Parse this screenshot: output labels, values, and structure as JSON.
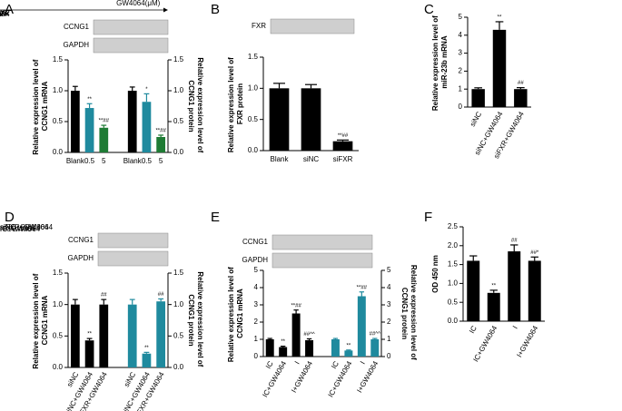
{
  "chart_data": [
    {
      "type": "bar",
      "panel": "A",
      "blot": {
        "header": "GW4064(μM)",
        "lanes": [
          "Blank",
          "0.5",
          "5"
        ],
        "rows": [
          "CCNG1",
          "GAPDH"
        ]
      },
      "categories": [
        "Blank",
        "0.5",
        "5",
        "Blank",
        "0.5",
        "5"
      ],
      "colors": [
        "#000000",
        "#1f8a9e",
        "#1e7b34",
        "#000000",
        "#1f8a9e",
        "#1e7b34"
      ],
      "series": [
        {
          "values": [
            1.0,
            0.72,
            0.4,
            null,
            null,
            null
          ],
          "errors": [
            0.07,
            0.07,
            0.04,
            null,
            null,
            null
          ]
        },
        {
          "axis": "y2",
          "values": [
            null,
            null,
            null,
            1.0,
            0.82,
            0.25
          ],
          "errors": [
            null,
            null,
            null,
            0.06,
            0.13,
            0.03
          ]
        }
      ],
      "annotations": [
        null,
        "**",
        "**##",
        null,
        "*",
        "**##"
      ],
      "ylabel": "Relative expression level of CCNG1 mRNA",
      "y2label": "Relative expression level of CCNG1 protein",
      "ylim": [
        0,
        1.5
      ],
      "yticks": [
        {
          "value": 0,
          "label": "0.0"
        },
        0.5,
        {
          "value": 1,
          "label": "1.0"
        },
        1.5
      ],
      "y2lim": [
        0,
        1.5
      ],
      "y2ticks": [
        {
          "value": 0,
          "label": "0.0"
        },
        0.5,
        {
          "value": 1,
          "label": "1.0"
        },
        1.5
      ]
    },
    {
      "type": "bar",
      "panel": "B",
      "blot": {
        "lanes": [
          "Blank",
          "siNC",
          "siFXR"
        ],
        "rows": [
          "FXR"
        ]
      },
      "categories": [
        "Blank",
        "siNC",
        "siFXR"
      ],
      "colors": [
        "#000000",
        "#000000",
        "#000000"
      ],
      "series": [
        {
          "values": [
            1.0,
            1.0,
            0.15
          ],
          "errors": [
            0.08,
            0.06,
            0.02
          ]
        }
      ],
      "annotations": [
        null,
        null,
        "**##"
      ],
      "ylabel": "Relative expression level of FXR protein",
      "ylim": [
        0,
        1.5
      ],
      "yticks": [
        {
          "value": 0,
          "label": "0.0"
        },
        0.5,
        {
          "value": 1,
          "label": "1.0"
        },
        1.5
      ]
    },
    {
      "type": "bar",
      "panel": "C",
      "categories": [
        "siNC",
        "siNC+GW4064",
        "siFXR+GW4064"
      ],
      "xtick_rotation": 60,
      "colors": [
        "#000000",
        "#000000",
        "#000000"
      ],
      "series": [
        {
          "values": [
            1.0,
            4.3,
            1.0
          ],
          "errors": [
            0.07,
            0.45,
            0.08
          ]
        }
      ],
      "annotations": [
        null,
        "**",
        "##"
      ],
      "ylabel": "Relative expression level of miR-23b mRNA",
      "ylim": [
        0,
        5
      ],
      "yticks": [
        0,
        1,
        2,
        3,
        4,
        5
      ]
    },
    {
      "type": "bar",
      "panel": "D",
      "blot": {
        "lanes": [
          "siNC",
          "siNC+GW4064",
          "siFXR+GW4064"
        ],
        "lane_rotation": 60,
        "rows": [
          "CCNG1",
          "GAPDH"
        ]
      },
      "categories": [
        "siNC",
        "siNC+GW4064",
        "siFXR+GW4064",
        "siNC",
        "siNC+GW4064",
        "siFXR+GW4064"
      ],
      "xtick_rotation": 60,
      "colors": [
        "#000000",
        "#000000",
        "#000000",
        "#1f8a9e",
        "#1f8a9e",
        "#1f8a9e"
      ],
      "series": [
        {
          "values": [
            1.0,
            0.43,
            1.0,
            null,
            null,
            null
          ],
          "errors": [
            0.08,
            0.03,
            0.08,
            null,
            null,
            null
          ]
        },
        {
          "axis": "y2",
          "values": [
            null,
            null,
            null,
            1.0,
            0.22,
            1.05
          ],
          "errors": [
            null,
            null,
            null,
            0.08,
            0.02,
            0.04
          ]
        }
      ],
      "annotations": [
        null,
        "**",
        "##",
        null,
        "**",
        "##"
      ],
      "ylabel": "Relative expression level of CCNG1 mRNA",
      "y2label": "Relative expression level of CCNG1 protein",
      "ylim": [
        0,
        1.5
      ],
      "yticks": [
        {
          "value": 0,
          "label": "0.0"
        },
        0.5,
        {
          "value": 1,
          "label": "1.0"
        },
        1.5
      ],
      "y2lim": [
        0,
        1.5
      ],
      "y2ticks": [
        {
          "value": 0,
          "label": "0.0"
        },
        0.5,
        {
          "value": 1,
          "label": "1.0"
        },
        1.5
      ]
    },
    {
      "type": "bar",
      "panel": "E",
      "blot": {
        "lanes": [
          "IC",
          "IC+GW4064",
          "I",
          "I+GW4064"
        ],
        "lane_rotation": 60,
        "rows": [
          "CCNG1",
          "GAPDH"
        ]
      },
      "categories": [
        "IC",
        "IC+GW4064",
        "I",
        "I+GW4064",
        "IC",
        "IC+GW4064",
        "I",
        "I+GW4064"
      ],
      "xtick_rotation": 60,
      "colors": [
        "#000000",
        "#000000",
        "#000000",
        "#000000",
        "#1f8a9e",
        "#1f8a9e",
        "#1f8a9e",
        "#1f8a9e"
      ],
      "series": [
        {
          "values": [
            1.0,
            0.55,
            2.5,
            0.95,
            null,
            null,
            null,
            null
          ],
          "errors": [
            0.05,
            0.05,
            0.2,
            0.08,
            null,
            null,
            null,
            null
          ]
        },
        {
          "axis": "y2",
          "values": [
            null,
            null,
            null,
            null,
            1.0,
            0.35,
            3.5,
            1.0
          ],
          "errors": [
            null,
            null,
            null,
            null,
            0.05,
            0.03,
            0.25,
            0.05
          ]
        }
      ],
      "annotations": [
        null,
        "**",
        "**##",
        "##^^",
        null,
        "**",
        "**##",
        "##^^"
      ],
      "ylabel": "Relative expression level of CCNG1 mRNA",
      "y2label": "Relative expression level of CCNG1 protein",
      "ylim": [
        0,
        5
      ],
      "yticks": [
        0,
        1,
        2,
        3,
        4,
        5
      ],
      "y2lim": [
        0,
        5
      ],
      "y2ticks": [
        0,
        1,
        2,
        3,
        4,
        5
      ]
    },
    {
      "type": "bar",
      "panel": "F",
      "categories": [
        "IC",
        "IC+GW4064",
        "I",
        "I+GW4064"
      ],
      "xtick_rotation": 60,
      "colors": [
        "#000000",
        "#000000",
        "#000000",
        "#000000"
      ],
      "series": [
        {
          "values": [
            1.6,
            0.75,
            1.85,
            1.6
          ],
          "errors": [
            0.13,
            0.07,
            0.17,
            0.1
          ]
        }
      ],
      "annotations": [
        null,
        "**",
        "##",
        "##*"
      ],
      "ylabel": "OD 450 nm",
      "ylim": [
        0,
        2.5
      ],
      "yticks": [
        {
          "value": 0,
          "label": "0.0"
        },
        0.5,
        {
          "value": 1,
          "label": "1.0"
        },
        1.5,
        {
          "value": 2,
          "label": "2.0"
        },
        2.5
      ]
    }
  ]
}
